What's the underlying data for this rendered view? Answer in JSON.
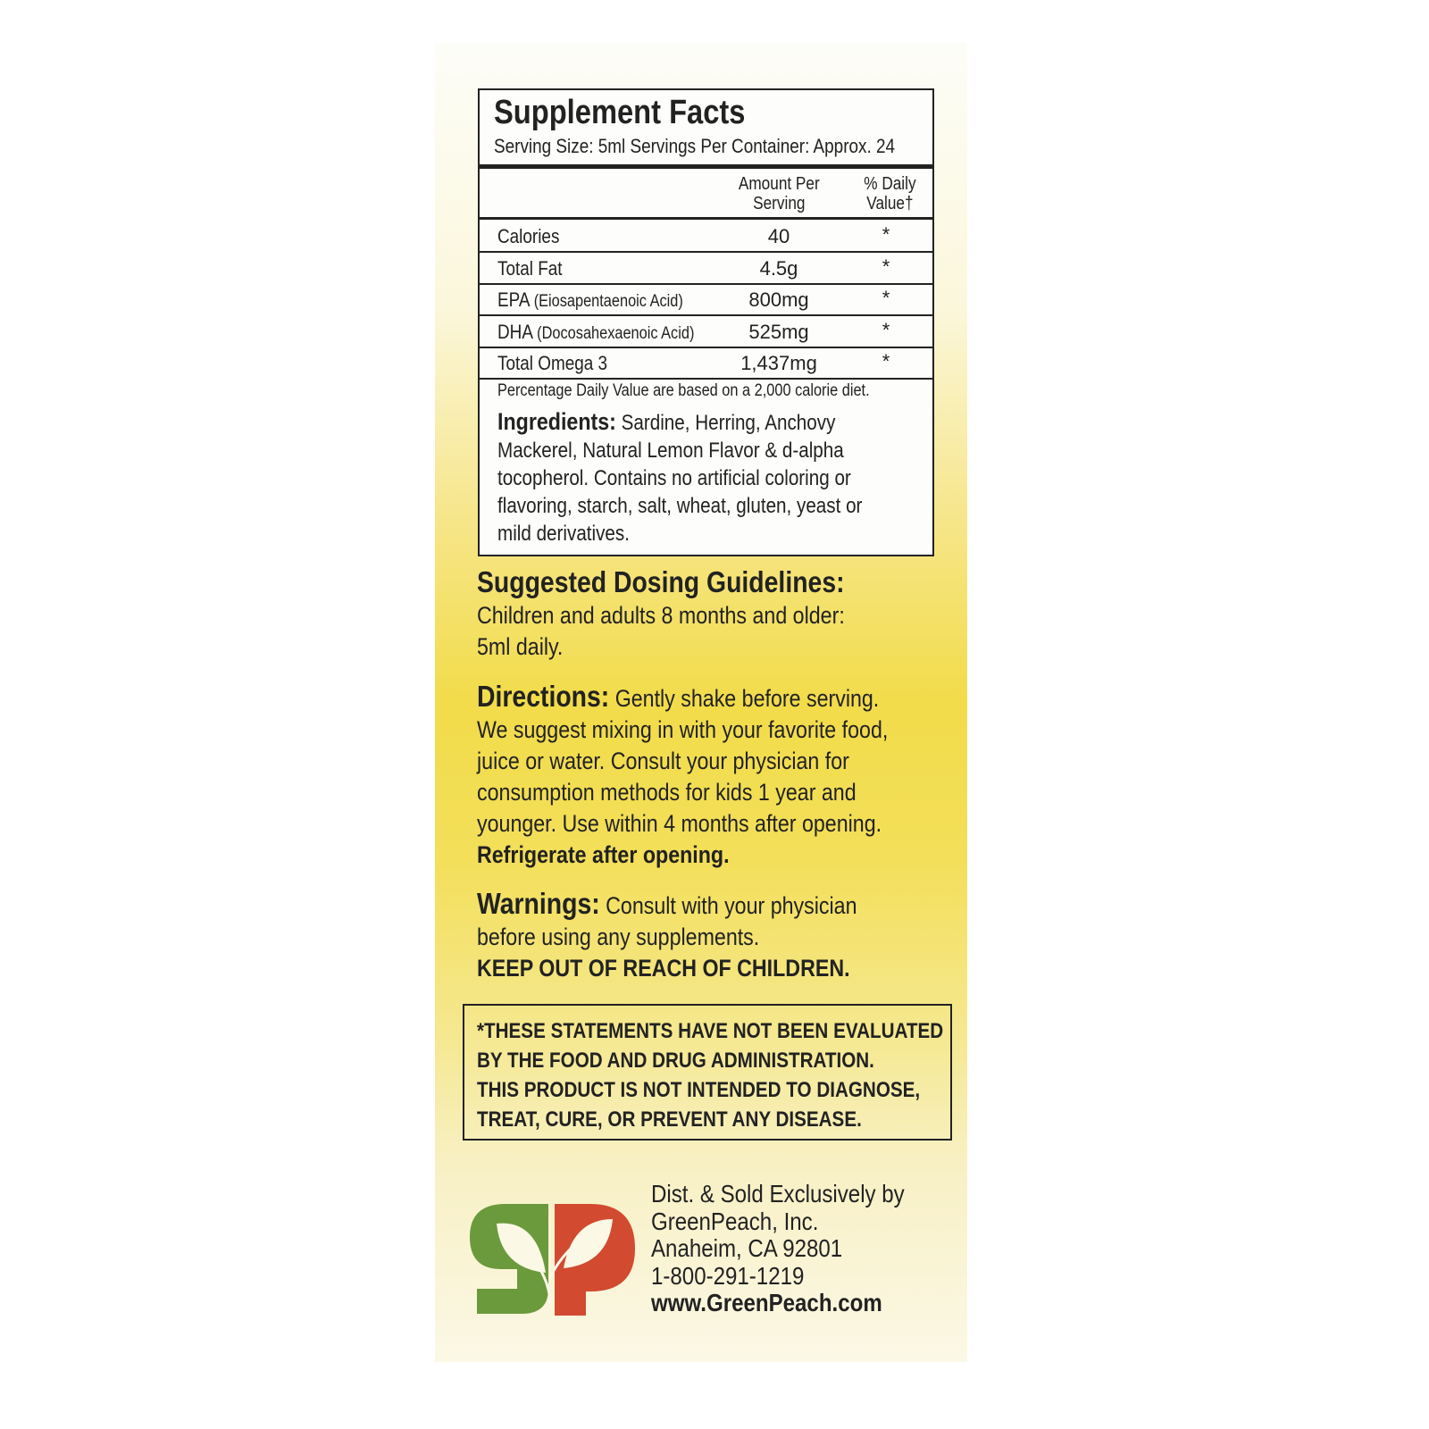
{
  "facts": {
    "title": "Supplement Facts",
    "serving": "Serving Size: 5ml  Servings Per Container: Approx. 24",
    "col_amount": [
      "Amount Per",
      "Serving"
    ],
    "col_dv": [
      "% Daily",
      "Value†"
    ],
    "rows": [
      {
        "name": "Calories",
        "sub": "",
        "amount": "40",
        "dv": "*"
      },
      {
        "name": "Total Fat",
        "sub": "",
        "amount": "4.5g",
        "dv": "*"
      },
      {
        "name": "EPA",
        "sub": "(Eiosapentaenoic Acid)",
        "amount": "800mg",
        "dv": "*"
      },
      {
        "name": "DHA",
        "sub": "(Docosahexaenoic Acid)",
        "amount": "525mg",
        "dv": "*"
      },
      {
        "name": "Total Omega 3",
        "sub": "",
        "amount": "1,437mg",
        "dv": "*"
      }
    ],
    "footnote": "Percentage Daily Value are based on a 2,000 calorie diet.",
    "ingredients_label": "Ingredients:",
    "ingredients_lines": [
      " Sardine, Herring, Anchovy",
      "Mackerel, Natural Lemon Flavor & d-alpha",
      "tocopherol. Contains no artificial coloring or",
      "flavoring, starch, salt, wheat, gluten, yeast or",
      "mild derivatives."
    ]
  },
  "dosing": {
    "heading": "Suggested Dosing Guidelines:",
    "lines": [
      "Children and adults 8 months and older:",
      "5ml daily."
    ]
  },
  "directions": {
    "heading": "Directions:",
    "lines": [
      " Gently shake before serving.",
      "We suggest mixing in with your favorite food,",
      "juice or water. Consult your physician for",
      "consumption methods for kids 1 year and",
      "younger. Use within 4 months after opening."
    ],
    "bold": "Refrigerate after opening."
  },
  "warnings": {
    "heading": "Warnings:",
    "lines": [
      " Consult with your physician",
      "before using any supplements."
    ],
    "bold": "KEEP OUT OF REACH OF CHILDREN."
  },
  "disclaimer": [
    "*THESE STATEMENTS HAVE NOT BEEN EVALUATED",
    "BY THE FOOD AND DRUG ADMINISTRATION.",
    "THIS PRODUCT IS NOT INTENDED TO DIAGNOSE,",
    "TREAT, CURE, OR PREVENT ANY DISEASE."
  ],
  "distributor": {
    "lines": [
      "Dist. & Sold Exclusively by",
      "GreenPeach, Inc.",
      "Anaheim, CA 92801",
      "1-800-291-1219"
    ],
    "website": "www.GreenPeach.com"
  },
  "logo": {
    "text": "gp",
    "colors": {
      "g": "#6b9a3c",
      "p": "#d24a30"
    }
  }
}
